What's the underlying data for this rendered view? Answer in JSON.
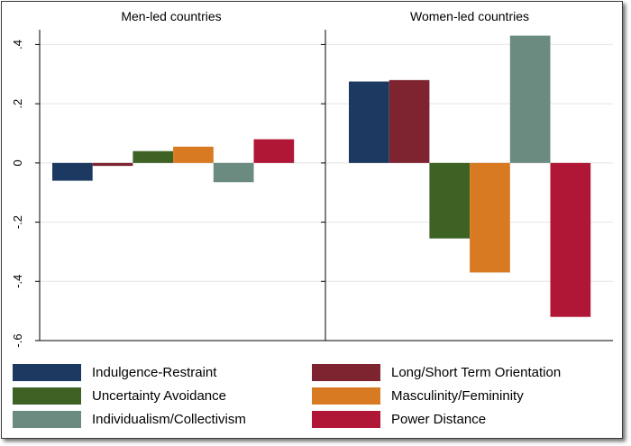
{
  "chart_data": {
    "type": "bar",
    "ylim": [
      -0.6,
      0.45
    ],
    "yticks": [
      -0.6,
      -0.4,
      -0.2,
      0,
      0.2,
      0.4
    ],
    "ytick_labels": [
      "-.6",
      "-.4",
      "-.2",
      "0",
      ".2",
      ".4"
    ],
    "panels": [
      {
        "title": "Men-led countries",
        "values": [
          -0.06,
          -0.01,
          0.04,
          0.055,
          -0.065,
          0.08
        ]
      },
      {
        "title": "Women-led countries",
        "values": [
          0.275,
          0.28,
          -0.255,
          -0.37,
          0.43,
          -0.52
        ]
      }
    ],
    "series": [
      {
        "name": "Indulgence-Restraint",
        "color": "#1c3962"
      },
      {
        "name": "Long/Short Term Orientation",
        "color": "#7e2431"
      },
      {
        "name": "Uncertainty Avoidance",
        "color": "#3e6224"
      },
      {
        "name": "Masculinity/Femininity",
        "color": "#d77a22"
      },
      {
        "name": "Individualism/Collectivism",
        "color": "#6c8b80"
      },
      {
        "name": "Power Distance",
        "color": "#b01635"
      }
    ]
  }
}
